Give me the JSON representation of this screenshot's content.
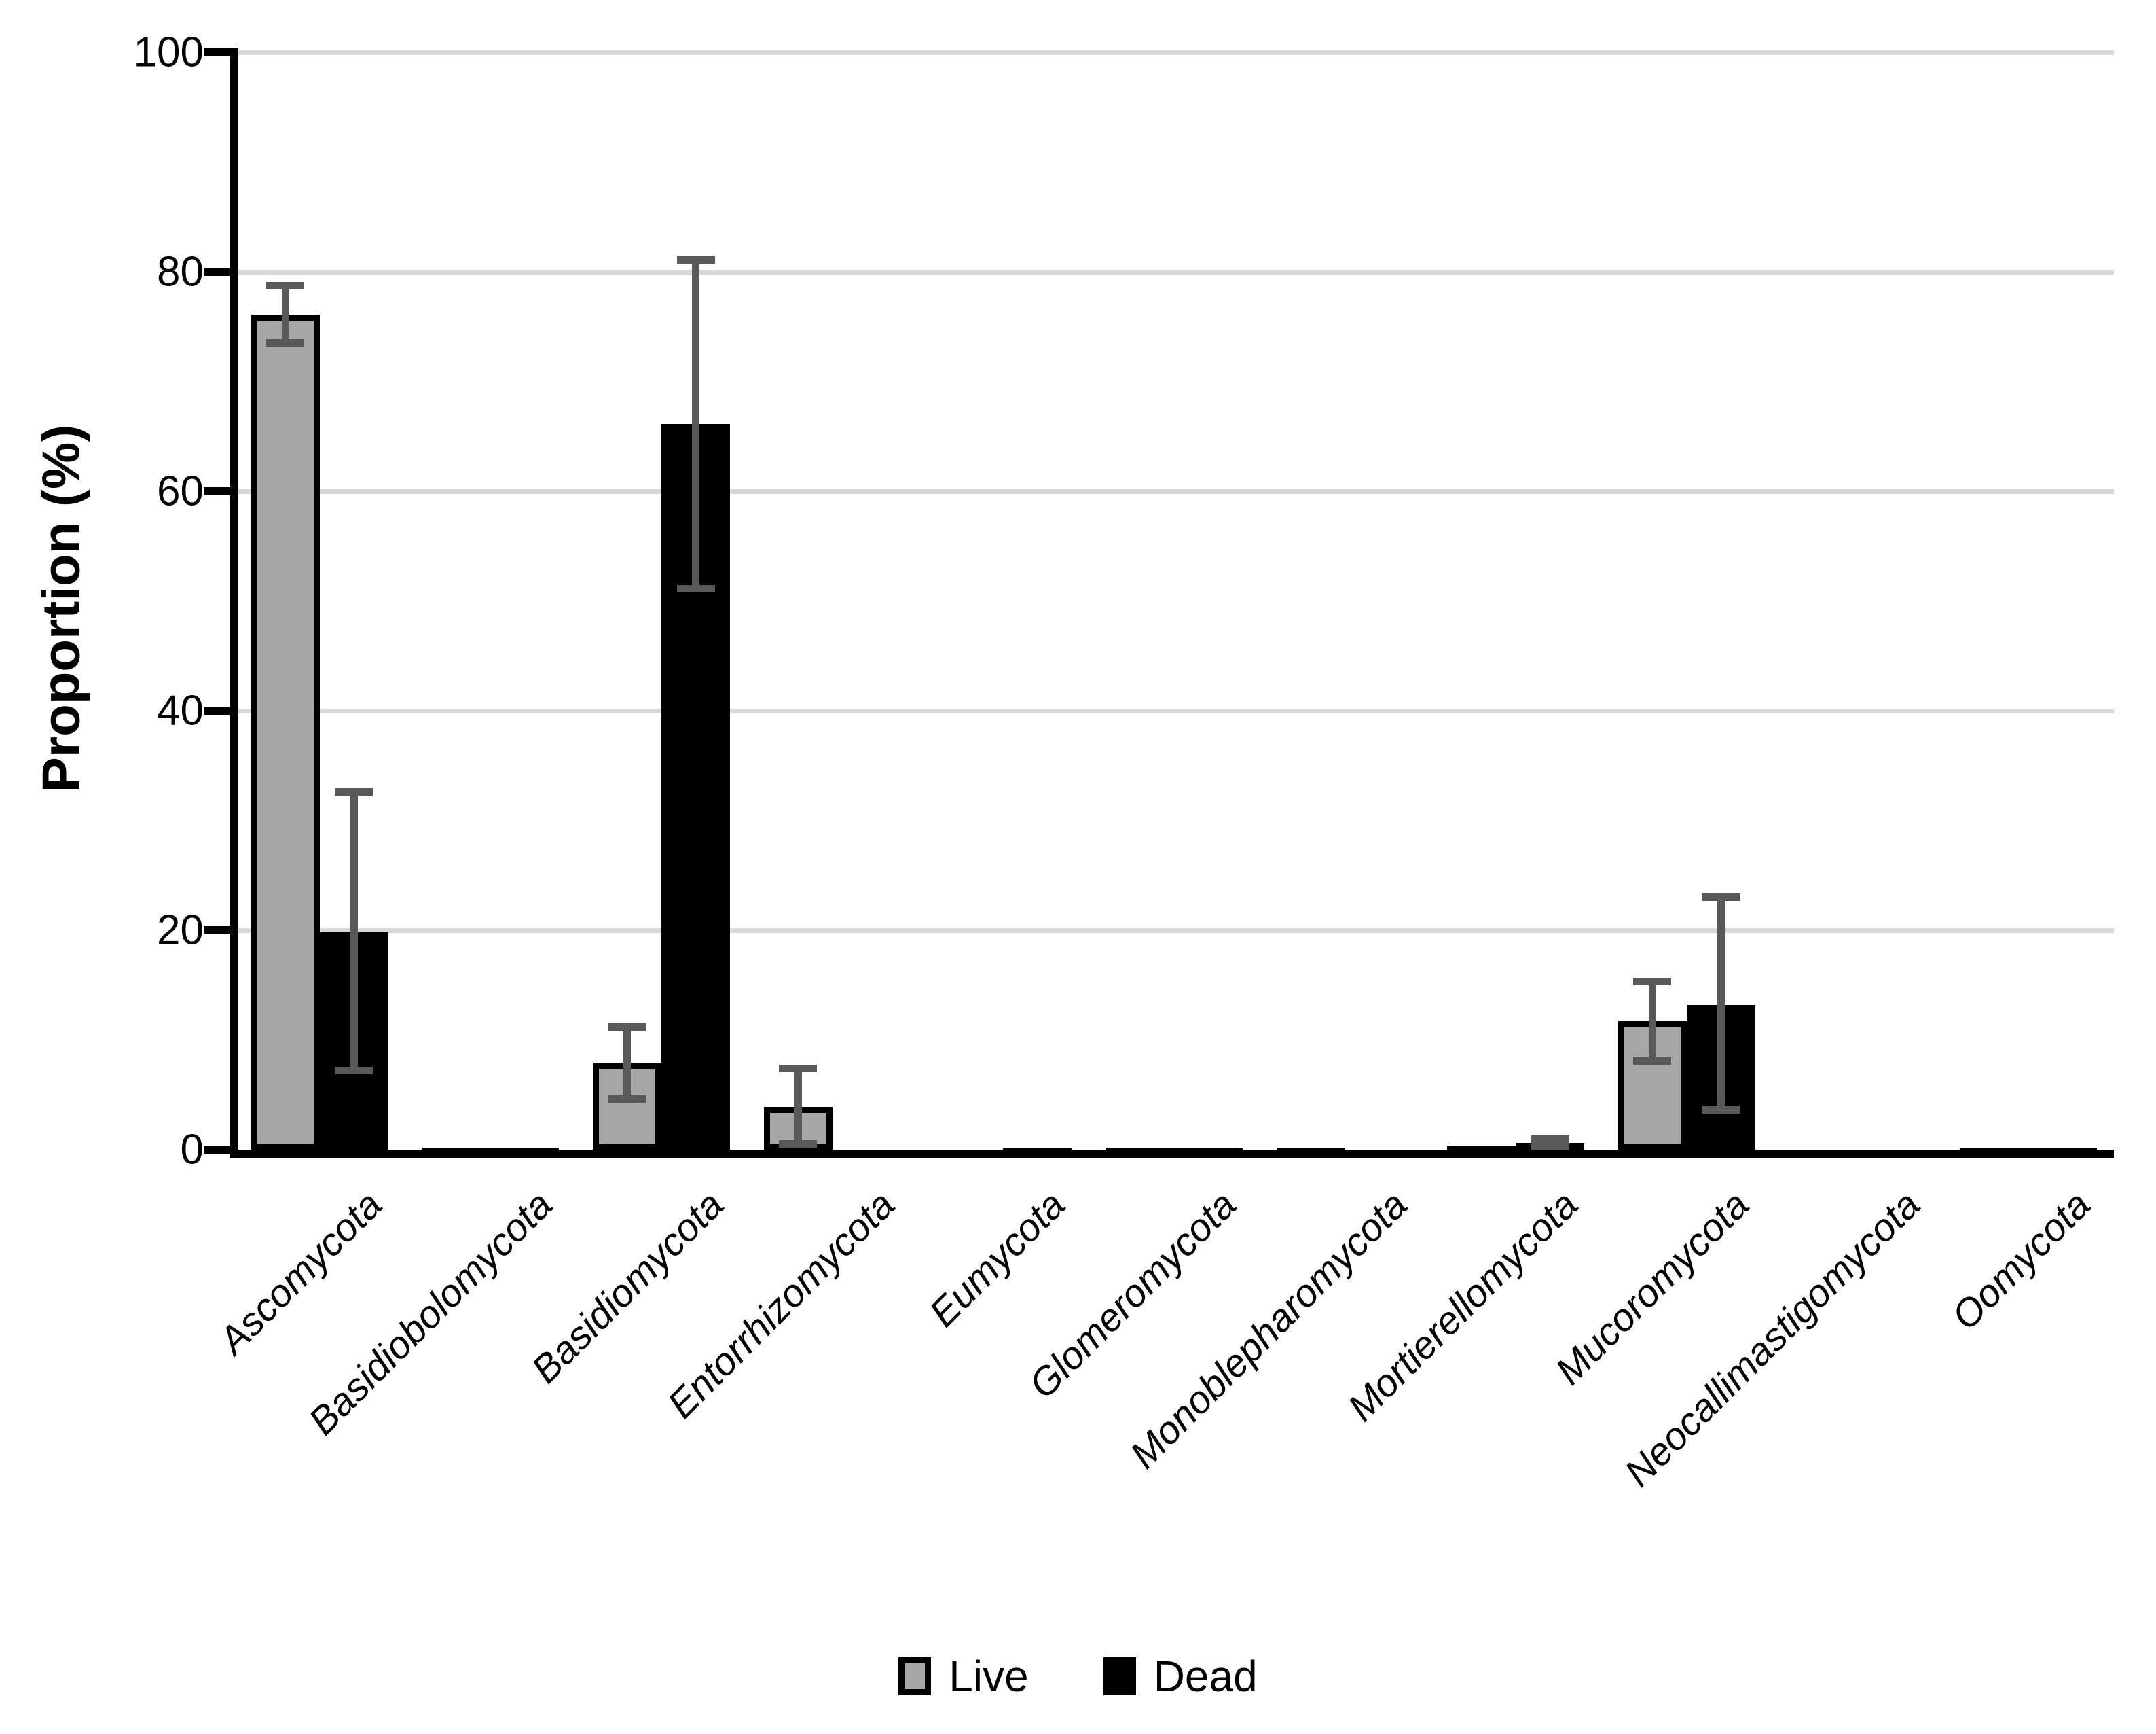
{
  "chart_data": {
    "type": "bar",
    "title": "",
    "ylabel": "Proportion (%)",
    "xlabel": "",
    "ylim": [
      0,
      100
    ],
    "yticks": [
      0,
      20,
      40,
      60,
      80,
      100
    ],
    "grid": "horizontal",
    "gridline_color": "#d9d9d9",
    "error_bar_color": "#595959",
    "legend_position": "bottom",
    "categories": [
      "Ascomycota",
      "Basidiobolomycota",
      "Basidiomycota",
      "Entorrhizomycota",
      "Eumycota",
      "Glomeromycota",
      "Monoblepharomycota",
      "Mortierellomycota",
      "Mucoromycota",
      "Neocallimastigomycota",
      "Oomycota"
    ],
    "series": [
      {
        "name": "Live",
        "color": "#a6a6a6",
        "border_color": "#000000",
        "values": [
          76.1,
          0.15,
          7.9,
          3.9,
          0.05,
          0.15,
          0.1,
          0.3,
          11.7,
          0.02,
          0.15
        ],
        "err_low": [
          2.6,
          null,
          3.3,
          3.4,
          null,
          null,
          null,
          null,
          3.6,
          null,
          null
        ],
        "err_high": [
          2.6,
          null,
          3.3,
          3.5,
          null,
          null,
          null,
          null,
          3.6,
          null,
          null
        ]
      },
      {
        "name": "Dead",
        "color": "#000000",
        "border_color": "#000000",
        "values": [
          19.8,
          0.15,
          66.1,
          0.05,
          0.15,
          0.1,
          0.05,
          0.65,
          13.2,
          0.02,
          0.1
        ],
        "err_low": [
          12.6,
          null,
          15.0,
          null,
          null,
          null,
          null,
          0.3,
          9.6,
          null,
          null
        ],
        "err_high": [
          12.8,
          null,
          15.0,
          null,
          null,
          null,
          null,
          0.3,
          9.8,
          null,
          null
        ]
      }
    ]
  }
}
